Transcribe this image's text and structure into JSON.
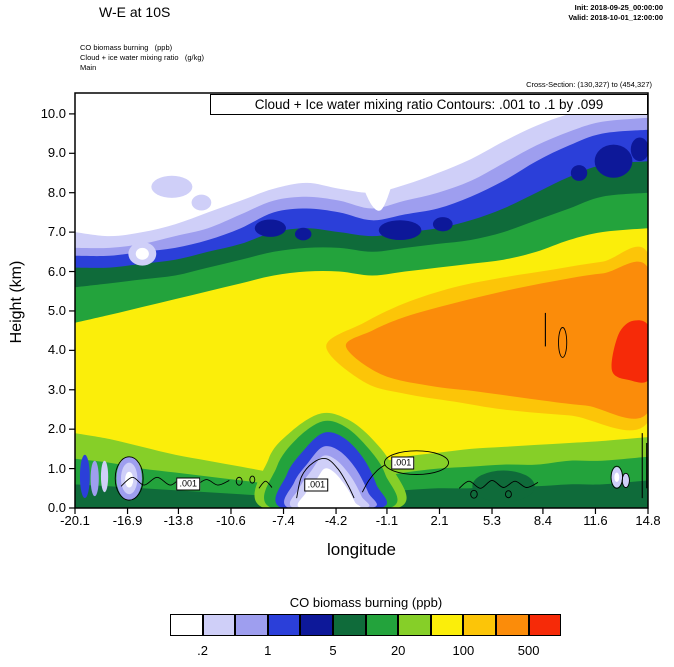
{
  "header": {
    "title": "W-E at 10S",
    "init_line": "Init: 2018-09-25_00:00:00",
    "valid_line": "Valid: 2018-10-01_12:00:00",
    "field1": "CO biomass burning   (ppb)",
    "field2": "Cloud + ice water mixing ratio   (g/kg)",
    "grid": "Main",
    "cross_section": "Cross-Section: (130,327) to (454,327)"
  },
  "plot": {
    "inner_title": "Cloud + Ice water mixing ratio Contours: .001 to .1 by .099",
    "xlabel": "longitude",
    "ylabel": "Height (km)",
    "x_tick_labels": [
      "-20.1",
      "-16.9",
      "-13.8",
      "-10.6",
      "-7.4",
      "-4.2",
      "-1.1",
      "2.1",
      "5.3",
      "8.4",
      "11.6",
      "14.8"
    ],
    "y_tick_labels": [
      "0.0",
      "1.0",
      "2.0",
      "3.0",
      "4.0",
      "5.0",
      "6.0",
      "7.0",
      "8.0",
      "9.0",
      "10.0"
    ]
  },
  "legend": {
    "title": "CO biomass burning  (ppb)",
    "labels": [
      ".2",
      "1",
      "5",
      "20",
      "100",
      "500"
    ],
    "colors": [
      "#FFFFFF",
      "#CFCFF8",
      "#9E9EEF",
      "#2B3FD9",
      "#0D1899",
      "#0F6B3A",
      "#23A33C",
      "#86CF28",
      "#FBEE0A",
      "#FCC508",
      "#FB8C0A",
      "#F62A08"
    ]
  },
  "chart_data": {
    "type": "filled_contour_cross_section",
    "title": "W-E at 10S",
    "fill_field": "CO biomass burning (ppb)",
    "overlay_field": "Cloud + Ice water mixing ratio (g/kg)",
    "overlay_contours": {
      "min": 0.001,
      "max": 0.1,
      "step": 0.099
    },
    "fill_levels_ppb": [
      0.2,
      0.5,
      1,
      2,
      5,
      10,
      20,
      50,
      100,
      200,
      500
    ],
    "x_axis": {
      "label": "longitude",
      "ticks": [
        -20.1,
        -16.9,
        -13.8,
        -10.6,
        -7.4,
        -4.2,
        -1.1,
        2.1,
        5.3,
        8.4,
        11.6,
        14.8
      ],
      "range": [
        -20.1,
        14.8
      ]
    },
    "y_axis": {
      "label": "Height (km)",
      "ticks": [
        0,
        1,
        2,
        3,
        4,
        5,
        6,
        7,
        8,
        9,
        10
      ],
      "range": [
        0,
        10.53
      ]
    },
    "xs": [
      -20.1,
      -18,
      -16,
      -14,
      -12,
      -10,
      -8,
      -6,
      -4,
      -2,
      0,
      2,
      4,
      6,
      8,
      10,
      12,
      14.8
    ],
    "bands": [
      {
        "c": 1,
        "tops": [
          7.0,
          6.9,
          7.0,
          7.2,
          7.5,
          7.8,
          8.1,
          8.25,
          8.1,
          8.0,
          8.2,
          8.5,
          8.85,
          9.3,
          9.7,
          10.0,
          10.2,
          10.3
        ]
      },
      {
        "c": 2,
        "tops": [
          6.6,
          6.6,
          6.7,
          6.9,
          7.1,
          7.45,
          7.8,
          7.9,
          7.8,
          7.6,
          7.8,
          8.0,
          8.3,
          8.75,
          9.2,
          9.55,
          9.8,
          9.9
        ]
      },
      {
        "c": 3,
        "tops": [
          6.4,
          6.4,
          6.5,
          6.6,
          6.8,
          7.1,
          7.5,
          7.6,
          7.5,
          7.3,
          7.45,
          7.6,
          7.9,
          8.3,
          8.8,
          9.2,
          9.5,
          9.6
        ]
      },
      {
        "c": 5,
        "tops": [
          6.1,
          6.1,
          6.2,
          6.3,
          6.5,
          6.7,
          7.0,
          7.1,
          7.0,
          6.9,
          7.0,
          7.1,
          7.3,
          7.6,
          8.0,
          8.4,
          8.7,
          8.8
        ]
      },
      {
        "c": 6,
        "tops": [
          5.6,
          5.7,
          5.8,
          5.9,
          6.1,
          6.3,
          6.5,
          6.6,
          6.6,
          6.5,
          6.6,
          6.7,
          6.8,
          7.0,
          7.3,
          7.6,
          7.9,
          8.0
        ]
      },
      {
        "c": 8,
        "tops": [
          4.7,
          4.9,
          5.1,
          5.3,
          5.5,
          5.7,
          5.9,
          6.0,
          6.0,
          5.9,
          6.0,
          6.1,
          6.2,
          6.3,
          6.5,
          6.8,
          7.0,
          7.1
        ]
      },
      {
        "c": 7,
        "tops": [
          1.9,
          1.75,
          1.55,
          1.35,
          1.2,
          1.05,
          0.9,
          0.8,
          0.9,
          1.1,
          1.3,
          1.4,
          1.5,
          1.55,
          1.6,
          1.65,
          1.7,
          1.8
        ]
      },
      {
        "c": 6,
        "tops": [
          1.25,
          1.15,
          1.0,
          0.9,
          0.8,
          0.7,
          0.6,
          0.5,
          0.6,
          0.75,
          0.9,
          1.0,
          1.05,
          1.1,
          1.1,
          1.2,
          1.2,
          1.3
        ]
      },
      {
        "c": 5,
        "tops": [
          0.6,
          0.55,
          0.5,
          0.45,
          0.4,
          0.35,
          0.3,
          0.25,
          0.3,
          0.4,
          0.45,
          0.5,
          0.5,
          0.55,
          0.55,
          0.6,
          0.6,
          0.7
        ]
      }
    ],
    "blobs": [
      {
        "c": 9,
        "pts": [
          [
            -4.8,
            4.1
          ],
          [
            -2.5,
            3.2
          ],
          [
            0,
            2.9
          ],
          [
            3,
            2.7
          ],
          [
            6,
            2.5
          ],
          [
            10,
            2.35
          ],
          [
            14.9,
            2.25
          ],
          [
            14.9,
            6.35
          ],
          [
            12,
            6.25
          ],
          [
            9,
            6.05
          ],
          [
            6,
            5.85
          ],
          [
            3,
            5.6
          ],
          [
            0,
            5.2
          ],
          [
            -2.5,
            4.7
          ]
        ]
      },
      {
        "c": 10,
        "pts": [
          [
            -3.6,
            4.1
          ],
          [
            -1.5,
            3.4
          ],
          [
            1.5,
            3.1
          ],
          [
            4.5,
            2.95
          ],
          [
            8,
            2.75
          ],
          [
            11,
            2.6
          ],
          [
            14.9,
            2.5
          ],
          [
            14.9,
            6.0
          ],
          [
            12,
            5.95
          ],
          [
            9,
            5.75
          ],
          [
            6,
            5.5
          ],
          [
            3,
            5.2
          ],
          [
            0,
            4.85
          ],
          [
            -2,
            4.5
          ]
        ]
      },
      {
        "c": 11,
        "pts": [
          [
            12.6,
            3.5
          ],
          [
            13.6,
            3.25
          ],
          [
            14.9,
            3.3
          ],
          [
            14.9,
            4.55
          ],
          [
            13.9,
            4.75
          ],
          [
            13.0,
            4.4
          ]
        ]
      },
      {
        "c": 7,
        "pts": [
          [
            -8.6,
            0
          ],
          [
            -8.3,
            1.25
          ],
          [
            -6.9,
            1.95
          ],
          [
            -5.1,
            2.4
          ],
          [
            -3.5,
            2.25
          ],
          [
            -2.0,
            1.75
          ],
          [
            -0.8,
            1.05
          ],
          [
            -0.45,
            0
          ]
        ]
      },
      {
        "c": 6,
        "pts": [
          [
            -8.1,
            0
          ],
          [
            -7.8,
            1.05
          ],
          [
            -6.6,
            1.75
          ],
          [
            -5.0,
            2.2
          ],
          [
            -3.6,
            2.05
          ],
          [
            -2.2,
            1.5
          ],
          [
            -1.2,
            0.85
          ],
          [
            -0.95,
            0
          ]
        ]
      },
      {
        "c": 3,
        "pts": [
          [
            -7.5,
            0
          ],
          [
            -7.2,
            0.85
          ],
          [
            -6.2,
            1.45
          ],
          [
            -5.0,
            1.9
          ],
          [
            -3.8,
            1.8
          ],
          [
            -2.6,
            1.3
          ],
          [
            -1.75,
            0.6
          ],
          [
            -1.5,
            0
          ]
        ]
      },
      {
        "c": 2,
        "pts": [
          [
            -7.05,
            0
          ],
          [
            -6.75,
            0.65
          ],
          [
            -5.9,
            1.15
          ],
          [
            -5.0,
            1.55
          ],
          [
            -4.0,
            1.45
          ],
          [
            -3.0,
            1.0
          ],
          [
            -2.25,
            0.4
          ],
          [
            -2.05,
            0
          ]
        ]
      },
      {
        "c": 1,
        "pts": [
          [
            -6.75,
            0
          ],
          [
            -6.45,
            0.5
          ],
          [
            -5.7,
            0.95
          ],
          [
            -5.0,
            1.32
          ],
          [
            -4.2,
            1.22
          ],
          [
            -3.3,
            0.8
          ],
          [
            -2.65,
            0.3
          ],
          [
            -2.45,
            0
          ]
        ]
      },
      {
        "c": 0,
        "pts": [
          [
            -6.35,
            0
          ],
          [
            -6.05,
            0.38
          ],
          [
            -5.4,
            0.72
          ],
          [
            -4.9,
            1.0
          ],
          [
            -4.3,
            0.9
          ],
          [
            -3.6,
            0.55
          ],
          [
            -3.05,
            0.15
          ],
          [
            -2.95,
            0
          ]
        ]
      },
      {
        "c": 5,
        "e": [
          6,
          0.55,
          1.9,
          0.4
        ]
      },
      {
        "c": 2,
        "e": [
          -16.8,
          0.75,
          0.78,
          0.55
        ]
      },
      {
        "c": 1,
        "e": [
          -16.8,
          0.75,
          0.5,
          0.4
        ]
      },
      {
        "c": 0,
        "e": [
          -16.8,
          0.72,
          0.25,
          0.2
        ]
      },
      {
        "c": 3,
        "e": [
          -19.5,
          0.8,
          0.3,
          0.55
        ]
      },
      {
        "c": 2,
        "e": [
          -18.9,
          0.75,
          0.25,
          0.45
        ]
      },
      {
        "c": 1,
        "e": [
          -18.3,
          0.8,
          0.22,
          0.4
        ]
      },
      {
        "c": 1,
        "e": [
          -16,
          6.45,
          0.85,
          0.3
        ]
      },
      {
        "c": 0,
        "e": [
          -16,
          6.45,
          0.4,
          0.15
        ]
      },
      {
        "c": 1,
        "e": [
          -14.2,
          8.15,
          1.25,
          0.28
        ]
      },
      {
        "c": 1,
        "e": [
          -12.4,
          7.75,
          0.6,
          0.2
        ]
      },
      {
        "c": 0,
        "pts": [
          [
            -2.9,
            8.9
          ],
          [
            -2.3,
            7.9
          ],
          [
            -1.5,
            7.55
          ],
          [
            -0.8,
            8.2
          ],
          [
            -0.4,
            8.9
          ]
        ]
      },
      {
        "c": 4,
        "e": [
          -8.2,
          7.1,
          0.95,
          0.22
        ]
      },
      {
        "c": 4,
        "e": [
          -6.2,
          6.95,
          0.5,
          0.16
        ]
      },
      {
        "c": 4,
        "e": [
          -0.3,
          7.05,
          1.3,
          0.25
        ]
      },
      {
        "c": 4,
        "e": [
          2.3,
          7.2,
          0.6,
          0.18
        ]
      },
      {
        "c": 4,
        "e": [
          10.6,
          8.5,
          0.5,
          0.2
        ]
      },
      {
        "c": 4,
        "e": [
          12.7,
          8.8,
          1.15,
          0.42
        ]
      },
      {
        "c": 4,
        "e": [
          14.3,
          9.1,
          0.55,
          0.3
        ]
      },
      {
        "c": 1,
        "e": [
          12.9,
          0.78,
          0.32,
          0.26
        ]
      },
      {
        "c": 0,
        "e": [
          12.9,
          0.78,
          0.15,
          0.12
        ]
      },
      {
        "c": 1,
        "e": [
          13.45,
          0.7,
          0.2,
          0.18
        ]
      }
    ],
    "annotations": {
      "paths": [
        [
          [
            -17.3,
            0.55
          ],
          [
            -16.6,
            0.78
          ],
          [
            -15.9,
            0.58
          ],
          [
            -15.1,
            0.78
          ],
          [
            -14.3,
            0.58
          ],
          [
            -13.6,
            0.75
          ],
          [
            -12.9,
            0.56
          ],
          [
            -12.1,
            0.72
          ],
          [
            -11.4,
            0.58
          ],
          [
            -10.7,
            0.7
          ]
        ],
        [
          [
            -8.9,
            0.5
          ],
          [
            -8.5,
            0.68
          ],
          [
            -8.1,
            0.52
          ]
        ],
        [
          [
            -6.6,
            0.25
          ],
          [
            -6.3,
            0.8
          ],
          [
            -5.6,
            1.15
          ],
          [
            -4.8,
            1.25
          ],
          [
            -4.1,
            1.0
          ],
          [
            -3.5,
            0.6
          ],
          [
            -3.1,
            0.25
          ]
        ],
        [
          [
            -2.6,
            0.4
          ],
          [
            -2.2,
            0.7
          ],
          [
            -1.7,
            0.95
          ],
          [
            -1.2,
            1.1
          ]
        ],
        [
          [
            3.3,
            0.5
          ],
          [
            3.9,
            0.68
          ],
          [
            4.6,
            0.5
          ],
          [
            5.3,
            0.7
          ],
          [
            6.0,
            0.52
          ],
          [
            6.7,
            0.68
          ],
          [
            7.4,
            0.52
          ],
          [
            8.1,
            0.65
          ]
        ]
      ],
      "ellipses": [
        [
          0.7,
          1.15,
          1.95,
          0.3
        ],
        [
          9.6,
          4.2,
          0.25,
          0.38
        ],
        [
          -16.8,
          0.75,
          0.85,
          0.55
        ],
        [
          -10.1,
          0.68,
          0.18,
          0.1
        ],
        [
          -9.3,
          0.72,
          0.15,
          0.09
        ],
        [
          4.2,
          0.35,
          0.2,
          0.1
        ],
        [
          6.3,
          0.35,
          0.18,
          0.09
        ],
        [
          12.9,
          0.78,
          0.35,
          0.28
        ],
        [
          13.45,
          0.7,
          0.22,
          0.18
        ]
      ],
      "lines": [
        [
          8.55,
          4.1,
          8.55,
          4.95
        ],
        [
          14.45,
          0.25,
          14.45,
          1.9
        ],
        [
          14.72,
          0.5,
          14.72,
          1.65
        ]
      ],
      "boxes": [
        {
          "text": ".001",
          "lon": -13.2,
          "km": 0.62
        },
        {
          "text": ".001",
          "lon": -5.4,
          "km": 0.58
        },
        {
          "text": ".001",
          "lon": -0.15,
          "km": 1.15
        }
      ]
    }
  }
}
